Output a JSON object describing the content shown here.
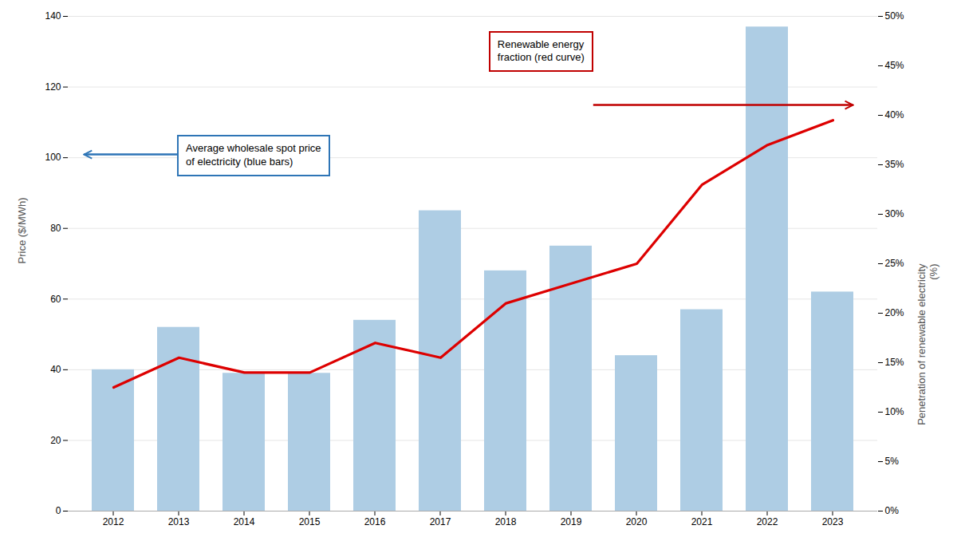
{
  "chart_data": {
    "type": "bar",
    "categories": [
      "2012",
      "2013",
      "2014",
      "2015",
      "2016",
      "2017",
      "2018",
      "2019",
      "2020",
      "2021",
      "2022",
      "2023"
    ],
    "series": [
      {
        "type": "bar",
        "color": "#aecde4",
        "values": [
          40,
          52,
          39,
          39,
          54,
          85,
          68,
          75,
          44,
          57,
          137,
          62
        ]
      },
      {
        "type": "line",
        "axis": "y2",
        "color": "#dd0000",
        "values": [
          12.5,
          15.5,
          14.0,
          14.0,
          17.0,
          15.5,
          21.0,
          23.0,
          25.0,
          33.0,
          37.0,
          39.5
        ]
      }
    ],
    "ylabel": "Price ($/MWh)",
    "y2label": "Penetration of renewable electricity\n(%)",
    "ylim": [
      0,
      140
    ],
    "yticks": [
      0,
      20,
      40,
      60,
      80,
      100,
      120,
      140
    ],
    "y2lim": [
      0,
      50
    ],
    "y2ticks": [
      {
        "value": 0,
        "label": "0%"
      },
      {
        "value": 5,
        "label": "5%"
      },
      {
        "value": 10,
        "label": "10%"
      },
      {
        "value": 15,
        "label": "15%"
      },
      {
        "value": 20,
        "label": "20%"
      },
      {
        "value": 25,
        "label": "25%"
      },
      {
        "value": 30,
        "label": "30%"
      },
      {
        "value": 35,
        "label": "35%"
      },
      {
        "value": 40,
        "label": "40%"
      },
      {
        "value": 45,
        "label": "45%"
      },
      {
        "value": 50,
        "label": "50%"
      }
    ],
    "grid": true,
    "annotations": [
      {
        "text": "Average wholesale spot price\nof electricity (blue bars)",
        "color": "#2e75b6"
      },
      {
        "text": "Renewable energy\nfraction (red curve)",
        "color": "#c00000"
      }
    ]
  }
}
